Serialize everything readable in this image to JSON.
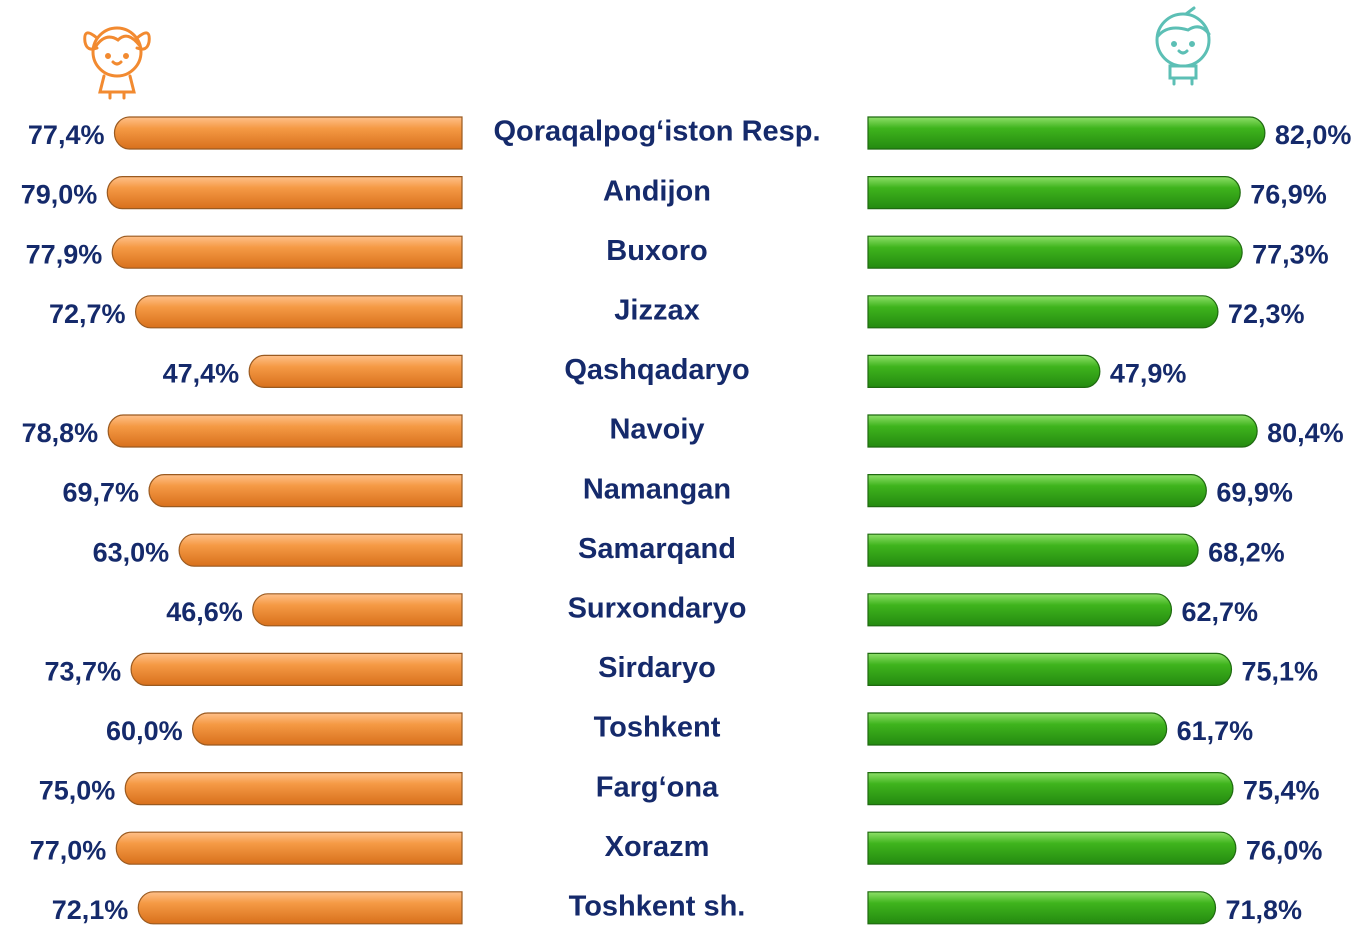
{
  "chart_data": {
    "type": "butterfly-bar",
    "categories": [
      "Qoraqalpog‘iston Resp.",
      "Andijon",
      "Buxoro",
      "Jizzax",
      "Qashqadaryo",
      "Navoiy",
      "Namangan",
      "Samarqand",
      "Surxondaryo",
      "Sirdaryo",
      "Toshkent",
      "Farg‘ona",
      "Xorazm",
      "Toshkent sh."
    ],
    "series": [
      {
        "color": "#f28a30",
        "values": [
          77.4,
          79.0,
          77.9,
          72.7,
          47.4,
          78.8,
          69.7,
          63.0,
          46.6,
          73.7,
          60.0,
          75.0,
          77.0,
          72.1
        ],
        "value_labels": [
          "77,4%",
          "79,0%",
          "77,9%",
          "72,7%",
          "47,4%",
          "78,8%",
          "69,7%",
          "63,0%",
          "46,6%",
          "73,7%",
          "60,0%",
          "75,0%",
          "77,0%",
          "72,1%"
        ]
      },
      {
        "color": "#3aa81a",
        "values": [
          82.0,
          76.9,
          77.3,
          72.3,
          47.9,
          80.4,
          69.9,
          68.2,
          62.7,
          75.1,
          61.7,
          75.4,
          76.0,
          71.8
        ],
        "value_labels": [
          "82,0%",
          "76,9%",
          "77,3%",
          "72,3%",
          "47,9%",
          "80,4%",
          "69,9%",
          "68,2%",
          "62,7%",
          "75,1%",
          "61,7%",
          "75,4%",
          "76,0%",
          "71,8%"
        ]
      }
    ]
  }
}
